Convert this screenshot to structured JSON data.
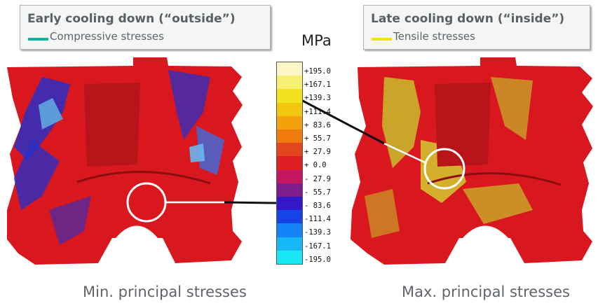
{
  "left_legend": {
    "title": "Early cooling down (“outside”)",
    "entry": "Compressive stresses",
    "swatch_color": "#16b49a"
  },
  "right_legend": {
    "title": "Late cooling down (“inside”)",
    "entry": "Tensile stresses",
    "swatch_color": "#f2e410"
  },
  "color_scale": {
    "unit": "MPa",
    "labels": [
      "+195.0",
      "+167.1",
      "+139.3",
      "+111.4",
      "+ 83.6",
      "+ 55.7",
      "+ 27.9",
      "+   0.0",
      "-  27.9",
      "-  55.7",
      "-  83.6",
      "-111.4",
      "-139.3",
      "-167.1",
      "-195.0"
    ],
    "colors": [
      "#fdf7c6",
      "#f7ef72",
      "#f3e21e",
      "#f2c70f",
      "#f3a20d",
      "#f07c0d",
      "#e3461c",
      "#de1f24",
      "#c5175f",
      "#7e1b8d",
      "#3318c8",
      "#1544e6",
      "#1382f2",
      "#16b7f5",
      "#19e7f3"
    ]
  },
  "captions": {
    "left": "Min. principal stresses",
    "right": "Max. principal stresses"
  },
  "colors": {
    "part_red": "#d8181e",
    "part_dark": "#9a0f14",
    "compress_blue": "#2a2fc6",
    "tensile_yellow": "#c9b52a",
    "circle_white": "#ffffff"
  }
}
